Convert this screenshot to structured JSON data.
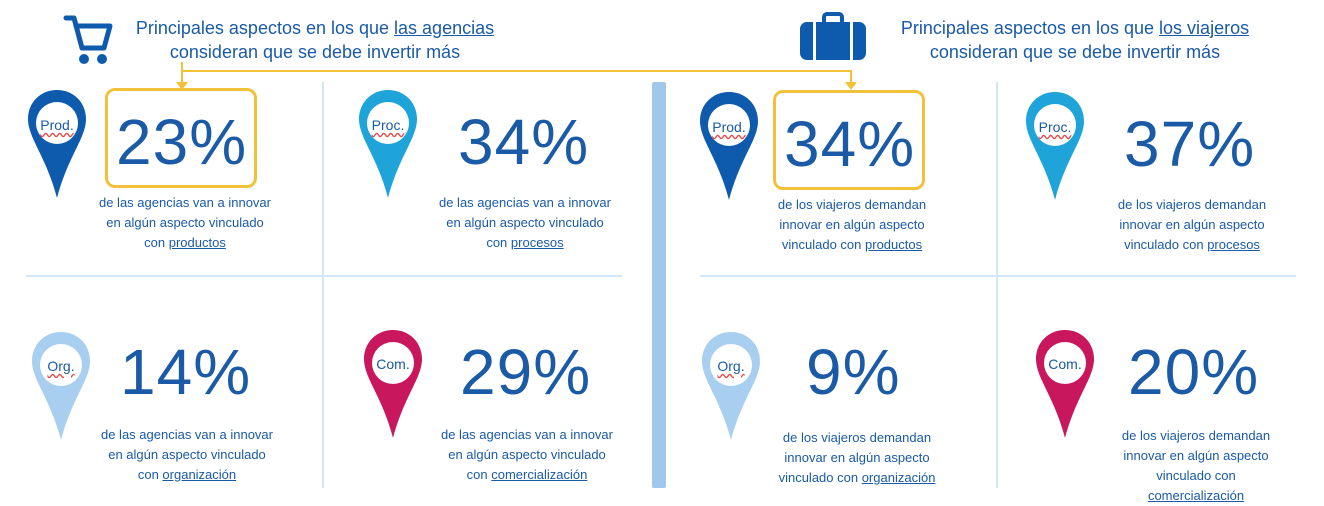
{
  "left_header": {
    "line1_prefix": "Principales aspectos en los que ",
    "line1_link": "las agencias",
    "line2": "consideran que se debe invertir más"
  },
  "right_header": {
    "line1_prefix": "Principales aspectos en los que ",
    "line1_link": "los viajeros",
    "line2": "consideran que se debe invertir más"
  },
  "icons": {
    "left": "shopping-cart-icon",
    "right": "suitcase-icon"
  },
  "colors": {
    "text": "#1a5aa6",
    "prod": "#0e5aad",
    "proc": "#1fa4d9",
    "org": "#a8cfef",
    "com": "#c8175d",
    "highlight": "#f2c13a",
    "divider": "#9fc8ea"
  },
  "agencias": {
    "prod": {
      "label": "Prod.",
      "pct": "23%",
      "desc1": "de las agencias van a innovar",
      "desc2": "en algún aspecto vinculado",
      "desc3_prefix": "con ",
      "kw": "productos"
    },
    "proc": {
      "label": "Proc.",
      "pct": "34%",
      "desc1": "de las agencias van a innovar",
      "desc2": "en algún aspecto vinculado",
      "desc3_prefix": "con ",
      "kw": "procesos"
    },
    "org": {
      "label": "Org.",
      "pct": "14%",
      "desc1": "de las agencias van a innovar",
      "desc2": "en algún aspecto vinculado",
      "desc3_prefix": "con ",
      "kw": "organización"
    },
    "com": {
      "label": "Com.",
      "pct": "29%",
      "desc1": "de las agencias van a innovar",
      "desc2": "en algún aspecto vinculado",
      "desc3_prefix": "con ",
      "kw": "comercialización"
    }
  },
  "viajeros": {
    "prod": {
      "label": "Prod.",
      "pct": "34%",
      "desc1": "de los viajeros demandan",
      "desc2": "innovar en algún aspecto",
      "desc3_prefix": "vinculado con ",
      "kw": "productos"
    },
    "proc": {
      "label": "Proc.",
      "pct": "37%",
      "desc1": "de los viajeros demandan",
      "desc2": "innovar en algún aspecto",
      "desc3_prefix": "vinculado con ",
      "kw": "procesos"
    },
    "org": {
      "label": "Org.",
      "pct": "9%",
      "desc1": "de los viajeros demandan",
      "desc2": "innovar en algún aspecto",
      "desc3_prefix": "vinculado con ",
      "kw": "organización"
    },
    "com": {
      "label": "Com.",
      "pct": "20%",
      "desc1": "de los viajeros demandan",
      "desc2": "innovar en algún aspecto",
      "desc3_prefix": "vinculado con",
      "kw": "comercialización"
    }
  }
}
